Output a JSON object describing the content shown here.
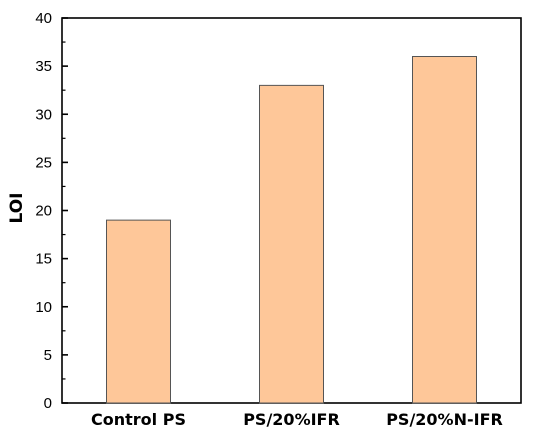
{
  "chart_data": {
    "type": "bar",
    "categories": [
      "Control PS",
      "PS/20%IFR",
      "PS/20%N-IFR"
    ],
    "values": [
      19,
      33,
      36
    ],
    "title": "",
    "xlabel": "",
    "ylabel": "LOI",
    "ylim": [
      0,
      40
    ],
    "yticks": [
      0,
      5,
      10,
      15,
      20,
      25,
      30,
      35,
      40
    ],
    "grid": false,
    "legend": "none",
    "bar_color": "#FEC799",
    "bar_edge_color": "#555555"
  }
}
